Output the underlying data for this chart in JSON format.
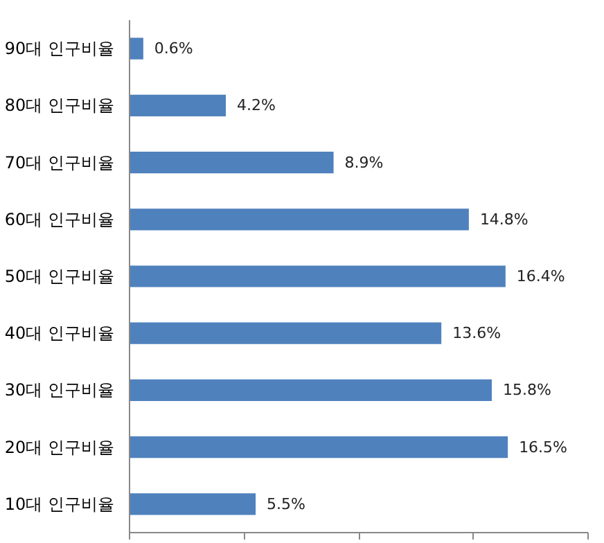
{
  "chart_data": {
    "type": "bar",
    "orientation": "horizontal",
    "categories": [
      "90대 인구비율",
      "80대 인구비율",
      "70대 인구비율",
      "60대 인구비율",
      "50대 인구비율",
      "40대 인구비율",
      "30대 인구비율",
      "20대 인구비율",
      "10대 인구비율"
    ],
    "values": [
      0.6,
      4.2,
      8.9,
      14.8,
      16.4,
      13.6,
      15.8,
      16.5,
      5.5
    ],
    "value_labels": [
      "0.6%",
      "4.2%",
      "8.9%",
      "14.8%",
      "16.4%",
      "13.6%",
      "15.8%",
      "16.5%",
      "5.5%"
    ],
    "color": "#4f81bd",
    "xlim": [
      0,
      20
    ],
    "xticks": [
      {
        "value": 0,
        "label": null
      },
      {
        "value": 5,
        "label": null
      },
      {
        "value": 10,
        "label": null
      },
      {
        "value": 15,
        "label": null
      },
      {
        "value": 20,
        "label": null
      }
    ],
    "grid": false
  }
}
